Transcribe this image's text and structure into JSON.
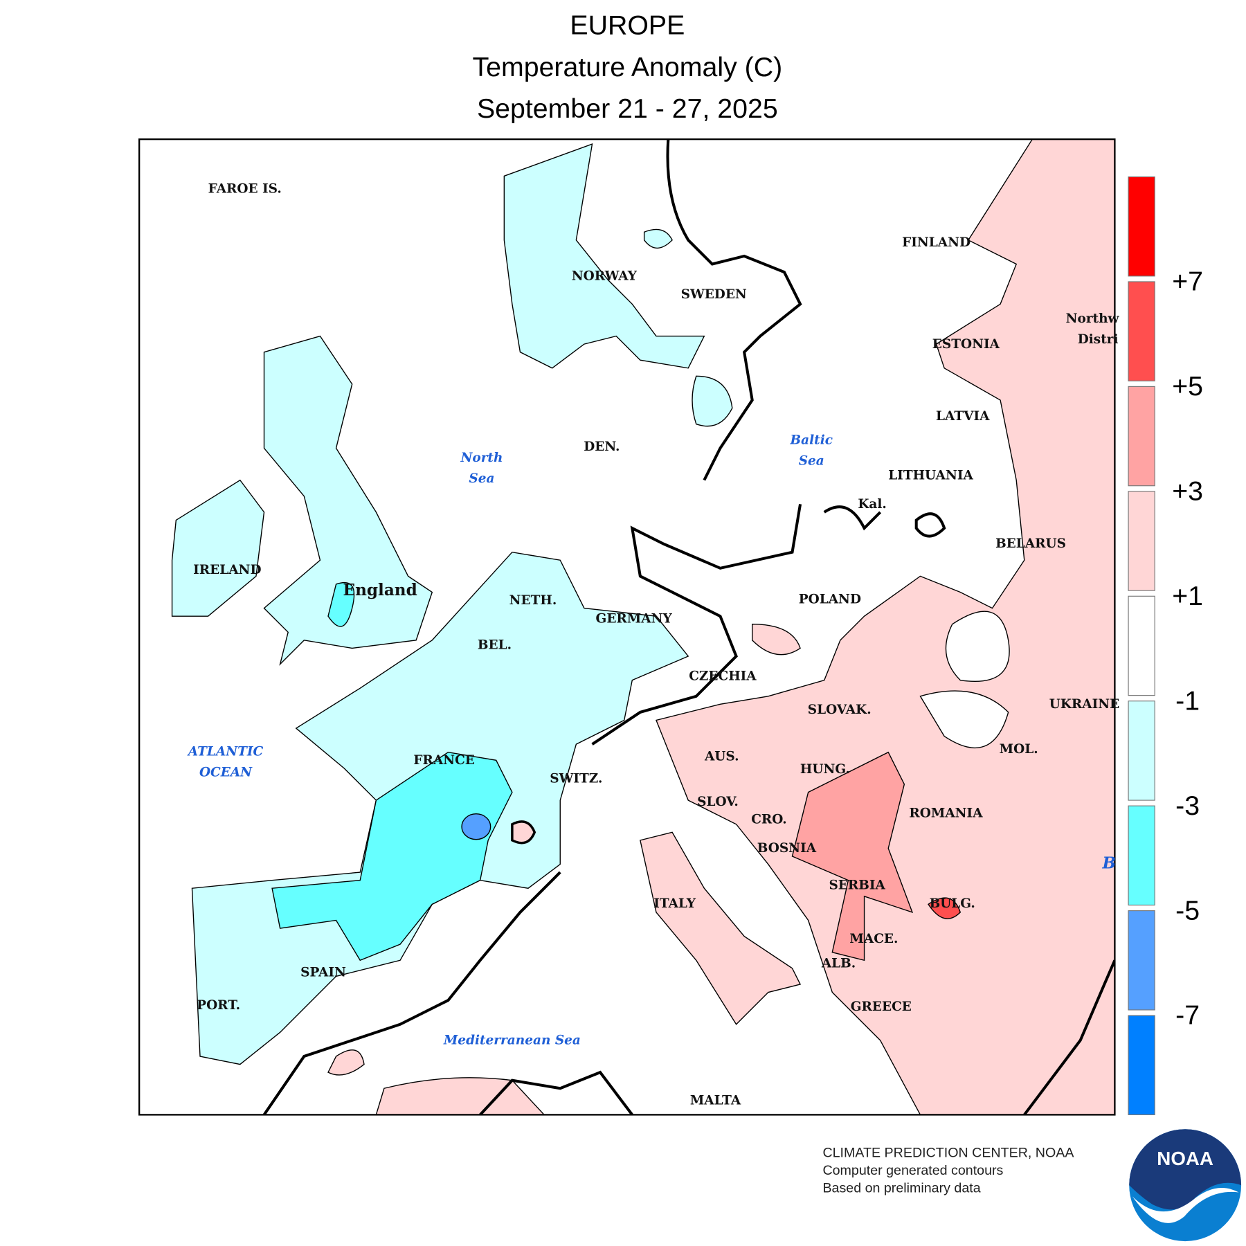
{
  "header": {
    "title": [
      "EUROPE",
      "Temperature Anomaly (C)",
      "September 21 - 27, 2025"
    ]
  },
  "map": {
    "labels": [
      "FAROE IS.",
      "NORWAY",
      "SWEDEN",
      "FINLAND",
      "ESTONIA",
      "Northw",
      "Distri",
      "LATVIA",
      "Baltic",
      "Sea",
      "North",
      "Sea",
      "LITHUANIA",
      "Kal.",
      "DEN.",
      "BELARUS",
      "IRELAND",
      "England",
      "NETH.",
      "GERMANY",
      "POLAND",
      "BEL.",
      "CZECHIA",
      "SLOVAK.",
      "UKRAINE",
      "ATLANTIC",
      "OCEAN",
      "FRANCE",
      "AUS.",
      "HUNG.",
      "MOL.",
      "SWITZ.",
      "SLOV.",
      "CRO.",
      "ROMANIA",
      "BOSNIA",
      "SERBIA",
      "ITALY",
      "BULG.",
      "MACE.",
      "SPAIN",
      "ALB.",
      "PORT.",
      "GREECE",
      "Mediterranean Sea",
      "MALTA",
      "B"
    ]
  },
  "legend": {
    "colors": [
      "#ff0000",
      "#ff4f4f",
      "#ffa3a3",
      "#ffd6d6",
      "#ffffff",
      "#ccffff",
      "#66ffff",
      "#55a0ff",
      "#0080ff"
    ],
    "labels": [
      "+7",
      "+5",
      "+3",
      "+1",
      "-1",
      "-3",
      "-5",
      "-7"
    ]
  },
  "footer": {
    "lines": [
      "CLIMATE PREDICTION CENTER, NOAA",
      "Computer generated contours",
      "Based on preliminary data"
    ],
    "logo": "NOAA"
  }
}
